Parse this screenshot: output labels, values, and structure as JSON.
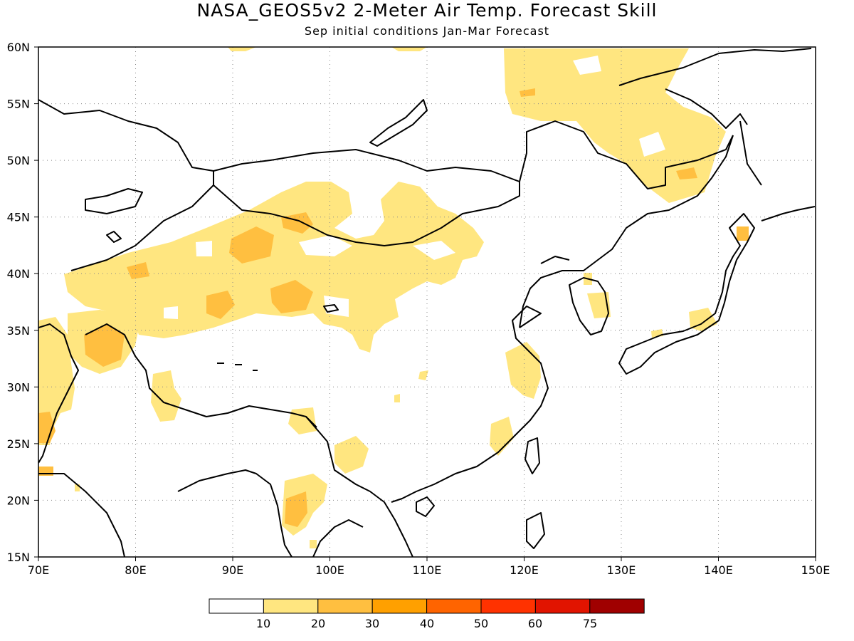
{
  "title": "NASA_GEOS5v2 2-Meter Air Temp. Forecast Skill",
  "subtitle": "Sep initial conditions  Jan-Mar Forecast",
  "axes": {
    "lon_labels": [
      "70E",
      "80E",
      "90E",
      "100E",
      "110E",
      "120E",
      "130E",
      "140E",
      "150E"
    ],
    "lat_labels": [
      "60N",
      "55N",
      "50N",
      "45N",
      "40N",
      "35N",
      "30N",
      "25N",
      "20N",
      "15N"
    ],
    "lon_range": [
      70,
      150
    ],
    "lat_range": [
      15,
      60
    ],
    "grid": "dotted"
  },
  "colorbar": {
    "labels": [
      "10",
      "20",
      "30",
      "40",
      "50",
      "60",
      "75"
    ],
    "colors": [
      "#ffffff",
      "#ffe680",
      "#ffbf40",
      "#ffa000",
      "#ff6400",
      "#ff3200",
      "#e11400",
      "#a00000"
    ]
  },
  "chart_data": {
    "type": "heatmap",
    "title": "NASA_GEOS5v2 2-Meter Air Temp. Forecast Skill",
    "subtitle": "Sep initial conditions  Jan-Mar Forecast",
    "xlim": [
      70,
      150
    ],
    "ylim": [
      15,
      60
    ],
    "levels": [
      10,
      20,
      30,
      40,
      50,
      60,
      75
    ]
  }
}
